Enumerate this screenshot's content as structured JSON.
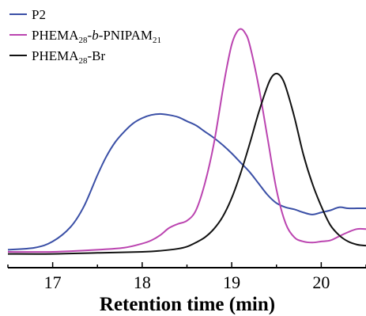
{
  "chart_data": {
    "type": "line",
    "title": "",
    "xlabel": "Retention time (min)",
    "ylabel": "",
    "xlim": [
      16.5,
      20.5
    ],
    "ylim": [
      0,
      1.1
    ],
    "xticks": [
      17,
      18,
      19,
      20
    ],
    "xtick_labels": [
      "17",
      "18",
      "19",
      "20"
    ],
    "grid": false,
    "legend": {
      "placement": "top-left",
      "entries": [
        {
          "parts": [
            {
              "t": "P2",
              "sub": false,
              "it": false
            }
          ]
        },
        {
          "parts": [
            {
              "t": "PHEMA",
              "sub": false,
              "it": false
            },
            {
              "t": "28",
              "sub": true,
              "it": false
            },
            {
              "t": "-",
              "sub": false,
              "it": false
            },
            {
              "t": "b",
              "sub": false,
              "it": true
            },
            {
              "t": "-PNIPAM",
              "sub": false,
              "it": false
            },
            {
              "t": "21",
              "sub": true,
              "it": false
            }
          ]
        },
        {
          "parts": [
            {
              "t": "PHEMA",
              "sub": false,
              "it": false
            },
            {
              "t": "28",
              "sub": true,
              "it": false
            },
            {
              "t": "-Br",
              "sub": false,
              "it": false
            }
          ]
        }
      ]
    },
    "series": [
      {
        "color": "#3a4fa6",
        "x": [
          16.5,
          16.8,
          17.0,
          17.2,
          17.35,
          17.5,
          17.6,
          17.7,
          17.8,
          17.9,
          18.0,
          18.1,
          18.2,
          18.3,
          18.4,
          18.5,
          18.6,
          18.7,
          18.8,
          18.9,
          19.0,
          19.1,
          19.2,
          19.3,
          19.4,
          19.5,
          19.6,
          19.7,
          19.8,
          19.9,
          20.0,
          20.1,
          20.2,
          20.3,
          20.4,
          20.5
        ],
        "y": [
          0.01,
          0.02,
          0.05,
          0.12,
          0.22,
          0.37,
          0.46,
          0.53,
          0.58,
          0.62,
          0.645,
          0.66,
          0.665,
          0.66,
          0.65,
          0.63,
          0.61,
          0.58,
          0.55,
          0.515,
          0.475,
          0.43,
          0.385,
          0.33,
          0.275,
          0.235,
          0.215,
          0.205,
          0.19,
          0.18,
          0.19,
          0.2,
          0.215,
          0.21,
          0.21,
          0.21
        ]
      },
      {
        "color": "#bb44b0",
        "x": [
          16.5,
          17.0,
          17.5,
          17.8,
          18.0,
          18.1,
          18.2,
          18.3,
          18.4,
          18.5,
          18.6,
          18.7,
          18.8,
          18.9,
          18.95,
          19.0,
          19.05,
          19.1,
          19.15,
          19.2,
          19.3,
          19.4,
          19.5,
          19.6,
          19.7,
          19.8,
          19.9,
          20.0,
          20.1,
          20.2,
          20.3,
          20.4,
          20.5
        ],
        "y": [
          0.0,
          0.0,
          0.01,
          0.02,
          0.04,
          0.055,
          0.08,
          0.115,
          0.135,
          0.15,
          0.2,
          0.33,
          0.52,
          0.78,
          0.9,
          1.0,
          1.055,
          1.075,
          1.055,
          1.0,
          0.8,
          0.55,
          0.3,
          0.14,
          0.07,
          0.05,
          0.045,
          0.05,
          0.055,
          0.075,
          0.095,
          0.11,
          0.11
        ]
      },
      {
        "color": "#111111",
        "x": [
          16.5,
          17.0,
          17.5,
          18.0,
          18.2,
          18.4,
          18.5,
          18.6,
          18.7,
          18.8,
          18.9,
          19.0,
          19.1,
          19.2,
          19.3,
          19.4,
          19.45,
          19.5,
          19.55,
          19.6,
          19.7,
          19.8,
          19.9,
          20.0,
          20.1,
          20.2,
          20.3,
          20.4,
          20.5
        ],
        "y": [
          -0.01,
          -0.01,
          -0.005,
          0.0,
          0.005,
          0.015,
          0.025,
          0.045,
          0.07,
          0.11,
          0.17,
          0.26,
          0.38,
          0.52,
          0.67,
          0.8,
          0.845,
          0.86,
          0.845,
          0.8,
          0.65,
          0.47,
          0.33,
          0.22,
          0.13,
          0.08,
          0.05,
          0.035,
          0.03
        ]
      }
    ]
  }
}
